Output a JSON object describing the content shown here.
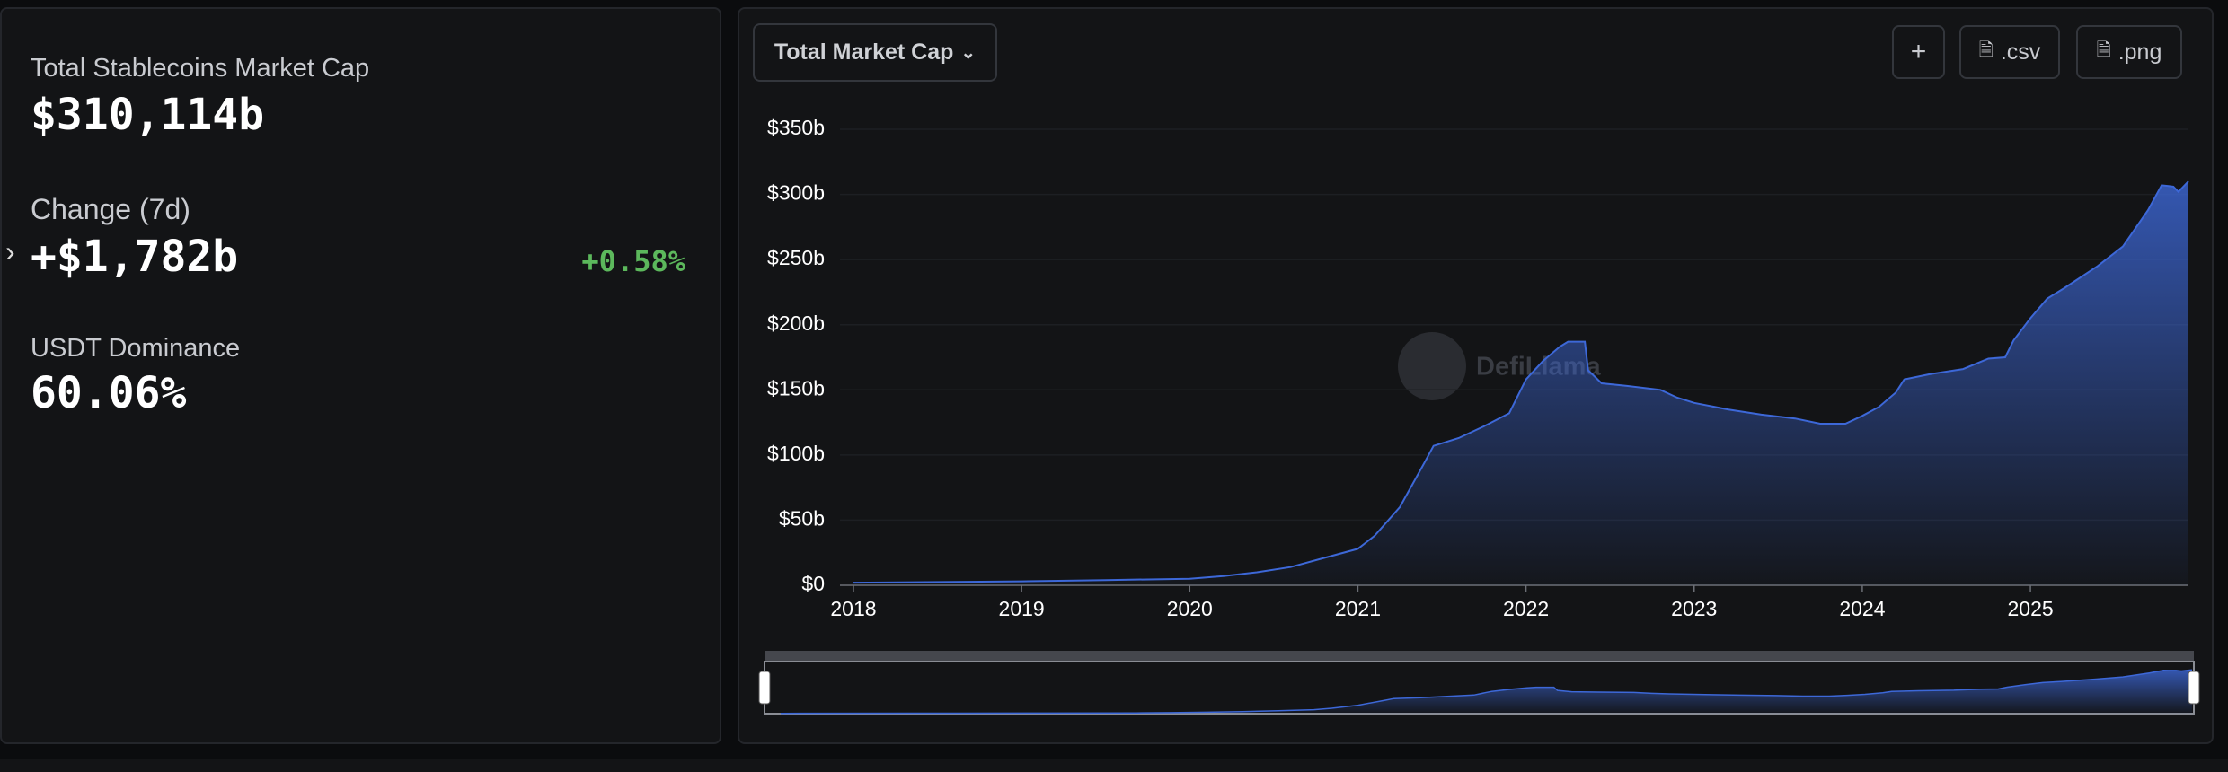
{
  "stats": {
    "market_cap_label": "Total Stablecoins Market Cap",
    "market_cap_value": "$310,114b",
    "change_label": "Change (7d)",
    "change_value": "+$1,782b",
    "change_pct": "+0.58%",
    "dominance_label": "USDT Dominance",
    "dominance_value": "60.06%"
  },
  "toolbar": {
    "dropdown": "Total Market Cap",
    "add": "+",
    "csv": ".csv",
    "png": ".png"
  },
  "chart_data": {
    "type": "area",
    "watermark": "DefiLlama",
    "color": "#3d68d8",
    "x": [
      2018.0,
      2019.0,
      2019.5,
      2020.0,
      2020.2,
      2020.4,
      2020.6,
      2020.8,
      2021.0,
      2021.1,
      2021.25,
      2021.4,
      2021.45,
      2021.6,
      2021.75,
      2021.9,
      2022.0,
      2022.1,
      2022.2,
      2022.25,
      2022.35,
      2022.37,
      2022.45,
      2022.6,
      2022.8,
      2022.9,
      2023.0,
      2023.2,
      2023.4,
      2023.6,
      2023.75,
      2023.9,
      2024.0,
      2024.1,
      2024.2,
      2024.25,
      2024.4,
      2024.6,
      2024.75,
      2024.85,
      2024.9,
      2025.0,
      2025.1,
      2025.2,
      2025.4,
      2025.55,
      2025.7,
      2025.78,
      2025.85,
      2025.88,
      2025.94
    ],
    "values": [
      2,
      3,
      4,
      5,
      7,
      10,
      14,
      21,
      28,
      38,
      60,
      95,
      107,
      113,
      122,
      132,
      158,
      172,
      183,
      187,
      187,
      165,
      155,
      153,
      150,
      144,
      140,
      135,
      131,
      128,
      124,
      124,
      130,
      137,
      148,
      158,
      162,
      166,
      174,
      175,
      188,
      205,
      220,
      228,
      245,
      260,
      288,
      307,
      306,
      302,
      310
    ],
    "xlim": [
      2017.92,
      2025.94
    ],
    "xticks": [
      2018,
      2019,
      2020,
      2021,
      2022,
      2023,
      2024,
      2025
    ],
    "ylim": [
      0,
      350
    ],
    "yticks": [
      {
        "value": 0,
        "label": "$0"
      },
      {
        "value": 50,
        "label": "$50b"
      },
      {
        "value": 100,
        "label": "$100b"
      },
      {
        "value": 150,
        "label": "$150b"
      },
      {
        "value": 200,
        "label": "$200b"
      },
      {
        "value": 250,
        "label": "$250b"
      },
      {
        "value": 300,
        "label": "$300b"
      },
      {
        "value": 350,
        "label": "$350b"
      }
    ],
    "grid": true
  }
}
